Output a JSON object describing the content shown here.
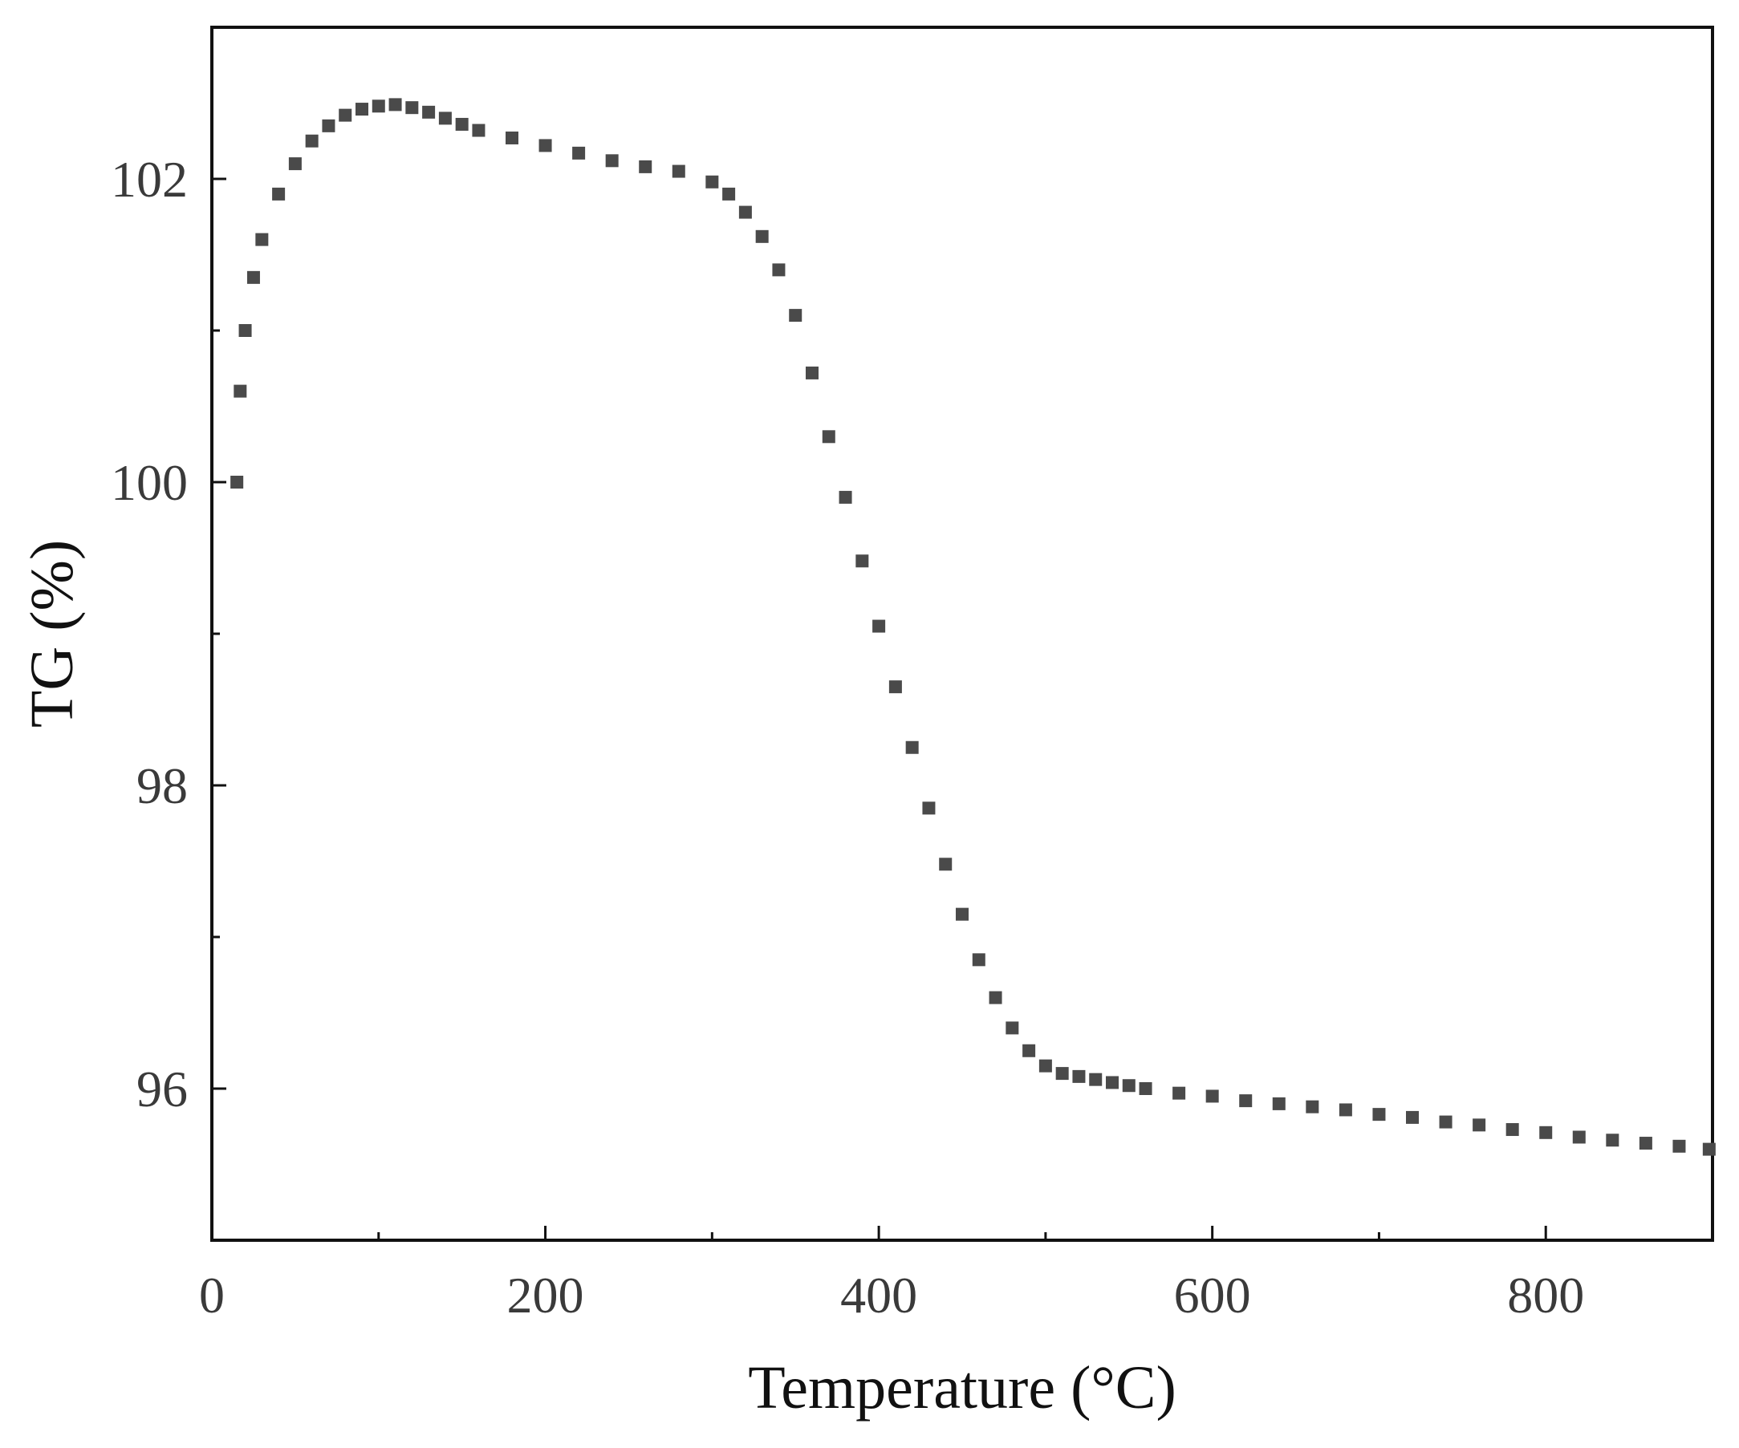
{
  "chart_data": {
    "type": "scatter",
    "xlabel": "Temperature (°C)",
    "ylabel": "TG (%)",
    "xlim": [
      0,
      900
    ],
    "ylim": [
      95,
      103
    ],
    "x_ticks": [
      "0",
      "200",
      "400",
      "600",
      "800"
    ],
    "x_tick_values": [
      0,
      200,
      400,
      600,
      800
    ],
    "x_minor_tick_values": [
      100,
      300,
      500,
      700
    ],
    "y_ticks": [
      "96",
      "98",
      "100",
      "102"
    ],
    "y_tick_values": [
      96,
      98,
      100,
      102
    ],
    "y_minor_tick_values": [
      97,
      99,
      101
    ],
    "grid": false,
    "marker": "square",
    "color": "#4a4a4a",
    "series": [
      {
        "x": [
          15,
          17,
          20,
          25,
          30,
          40,
          50,
          60,
          70,
          80,
          90,
          100,
          110,
          120,
          130,
          140,
          150,
          160,
          180,
          200,
          220,
          240,
          260,
          280,
          300,
          310,
          320,
          330,
          340,
          350,
          360,
          370,
          380,
          390,
          400,
          410,
          420,
          430,
          440,
          450,
          460,
          470,
          480,
          490,
          500,
          510,
          520,
          530,
          540,
          550,
          560,
          580,
          600,
          620,
          640,
          660,
          680,
          700,
          720,
          740,
          760,
          780,
          800,
          820,
          840,
          860,
          880,
          898
        ],
        "y": [
          100.0,
          100.6,
          101.0,
          101.35,
          101.6,
          101.9,
          102.1,
          102.25,
          102.35,
          102.42,
          102.46,
          102.48,
          102.49,
          102.47,
          102.44,
          102.4,
          102.36,
          102.32,
          102.27,
          102.22,
          102.17,
          102.12,
          102.08,
          102.05,
          101.98,
          101.9,
          101.78,
          101.62,
          101.4,
          101.1,
          100.72,
          100.3,
          99.9,
          99.48,
          99.05,
          98.65,
          98.25,
          97.85,
          97.48,
          97.15,
          96.85,
          96.6,
          96.4,
          96.25,
          96.15,
          96.1,
          96.08,
          96.06,
          96.04,
          96.02,
          96.0,
          95.97,
          95.95,
          95.92,
          95.9,
          95.88,
          95.86,
          95.83,
          95.81,
          95.78,
          95.76,
          95.73,
          95.71,
          95.68,
          95.66,
          95.64,
          95.62,
          95.6
        ]
      }
    ]
  }
}
